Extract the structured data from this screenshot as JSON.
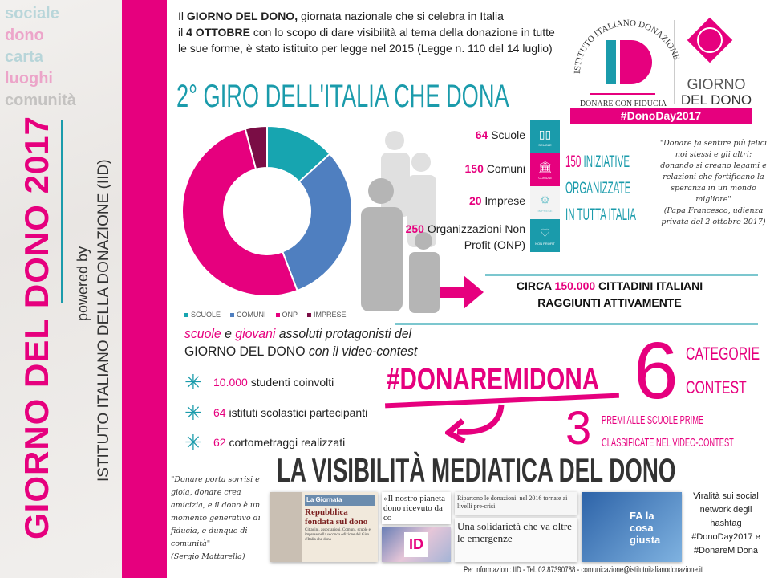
{
  "sidebar": {
    "title": "GIORNO DEL DONO 2017",
    "powered_by": "powered by",
    "institute": "ISTITUTO ITALIANO DELLA DONAZIONE (IID)",
    "ghost_words": [
      "sociale",
      "dono",
      "carta",
      "luoghi",
      "comunità"
    ]
  },
  "intro": {
    "p1_bold": "GIORNO DEL DONO,",
    "p1_pre": "Il ",
    "p1_rest": " giornata nazionale che si celebra in Italia",
    "p2_pre": "il ",
    "p2_bold": "4 OTTOBRE",
    "p2_rest": " con lo scopo di dare visibilità al tema della donazione in tutte le sue forme, è stato istituito per legge nel 2015 (Legge n. 110 del 14 luglio)"
  },
  "logo": {
    "arc_text": "ISTITUTO ITALIANO DONAZIONE",
    "letters": "ID",
    "tagline": "DONARE CON FIDUCIA",
    "giorno": "GIORNO",
    "del_dono": "DEL DONO",
    "hashtag": "#DonoDay2017"
  },
  "section_title": "2° GIRO DELL'ITALIA CHE DONA",
  "chart_data": {
    "type": "pie",
    "donut": true,
    "categories": [
      "SCUOLE",
      "COMUNI",
      "ONP",
      "IMPRESE"
    ],
    "values": [
      64,
      150,
      250,
      20
    ],
    "colors": [
      "#17a5b0",
      "#4f7fc0",
      "#e6007e",
      "#7a0d45"
    ],
    "legend": "bottom"
  },
  "stats": [
    {
      "num": "64",
      "label": "Scuole",
      "icon": "book-icon",
      "icon_label": "SCUOLE",
      "color": "#1a9bab"
    },
    {
      "num": "150",
      "label": "Comuni",
      "icon": "building-icon",
      "icon_label": "COMUNI",
      "color": "#e6007e"
    },
    {
      "num": "20",
      "label": "Imprese",
      "icon": "gears-icon",
      "icon_label": "IMPRESE",
      "color": "#f3f3f3"
    },
    {
      "num": "250",
      "label": "Organizzazioni Non Profit (ONP)",
      "icon": "heart-icon",
      "icon_label": "NON PROFIT",
      "color": "#1a9bab"
    }
  ],
  "iniziative": {
    "num": "150",
    "line1": " INIZIATIVE",
    "line2": "ORGANIZZATE",
    "line3": "IN TUTTA ITALIA"
  },
  "quote_papa": {
    "text": "\"Donare fa sentire più felici noi stessi e gli altri; donando si creano legami e relazioni che fortificano la speranza in un mondo migliore\"",
    "source": "(Papa Francesco, udienza privata del 2 ottobre 2017)"
  },
  "citizens": {
    "pre": "CIRCA ",
    "num": "150.000",
    "post": " CITTADINI ITALIANI",
    "line2": "RAGGIUNTI ATTIVAMENTE"
  },
  "protagonists": {
    "w1": "scuole",
    "w2": " e ",
    "w3": "giovani",
    "w4": " assoluti protagonisti del",
    "line2a": "GIORNO DEL DONO",
    "line2b": " con il video-contest"
  },
  "bullets": [
    {
      "num": "10.000",
      "text": " studenti coinvolti"
    },
    {
      "num": "64",
      "text": " istituti scolastici partecipanti"
    },
    {
      "num": "62",
      "text": " cortometraggi realizzati"
    }
  ],
  "contest": {
    "hashtag": "#DONAREMIDONA",
    "six": "6",
    "cat1": "CATEGORIE",
    "cat2": "CONTEST",
    "three": "3",
    "premi1": "PREMI ALLE SCUOLE PRIME",
    "premi2": "CLASSIFICATE NEL VIDEO-CONTEST"
  },
  "media_title": "LA VISIBILITÀ MEDIATICA DEL DONO",
  "quote_mattarella": {
    "text": "\"Donare porta sorrisi e gioia, donare crea amicizia, e il dono è un momento generativo di fiducia, e dunque di comunità\"",
    "source": "(Sergio Mattarella)"
  },
  "press": {
    "p1_header": "La Giornata",
    "p1_title": "Repubblica fondata sul dono",
    "p1_body": "Cittadini, associazioni, Comuni, scuole e imprese nella seconda edizione del Giro d'Italia che dona",
    "p2_title": "«Il nostro pianeta dono ricevuto da co",
    "p3_title": "Ripartono le donazioni: nel 2016 tornate ai livelli pre-crisi",
    "p4_title": "Una solidarietà che va oltre le emergenze",
    "p5_title": "FA la cosa giusta"
  },
  "viral": {
    "text": "Viralità sui social network degli hashtag",
    "tag1": "#DonoDay2017 e",
    "tag2": "#DonareMiDona"
  },
  "footer": "Per informazioni: IID - Tel. 02.87390788 - comunicazione@istitutoitalianodonazione.it"
}
